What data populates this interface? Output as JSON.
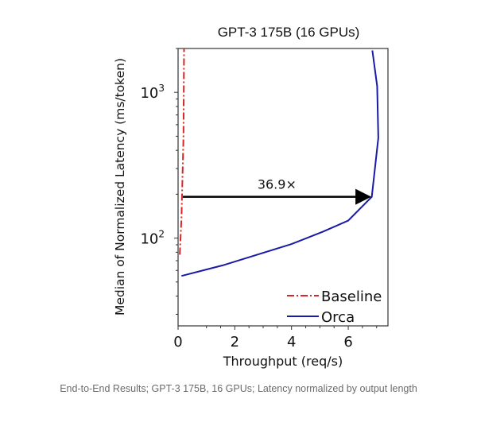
{
  "chart_data": {
    "type": "line",
    "title": "GPT-3 175B (16 GPUs)",
    "xlabel": "Throughput (req/s)",
    "ylabel": "Median of Normalized Latency (ms/token)",
    "xlim": [
      0,
      7.4
    ],
    "ylim": [
      25,
      2000
    ],
    "yscale": "log",
    "xticks": [
      0,
      2,
      4,
      6
    ],
    "xtick_labels": [
      "0",
      "2",
      "4",
      "6"
    ],
    "yticks": [
      100,
      1000
    ],
    "ytick_labels": [
      {
        "base": "10",
        "exp": "2"
      },
      {
        "base": "10",
        "exp": "3"
      }
    ],
    "grid": false,
    "legend_position": "bottom-right",
    "series": [
      {
        "name": "Baseline",
        "color": "#d62728",
        "style": "dashdot",
        "x": [
          0.06,
          0.12,
          0.19,
          0.21
        ],
        "y": [
          77,
          138,
          490,
          2000
        ]
      },
      {
        "name": "Orca",
        "color": "#1a1aa6",
        "style": "solid",
        "x": [
          0.12,
          1.57,
          4.0,
          5.12,
          6.0,
          6.83,
          7.06,
          7.02,
          6.85
        ],
        "y": [
          55,
          65,
          91,
          111,
          132,
          192,
          487,
          1100,
          1937
        ]
      }
    ],
    "annotations": [
      {
        "text": "36.9×",
        "arrow_from": [
          0.17,
          192
        ],
        "arrow_to": [
          6.8,
          192
        ]
      }
    ]
  },
  "caption": "End-to-End Results; GPT-3 175B, 16 GPUs; Latency normalized by output length"
}
